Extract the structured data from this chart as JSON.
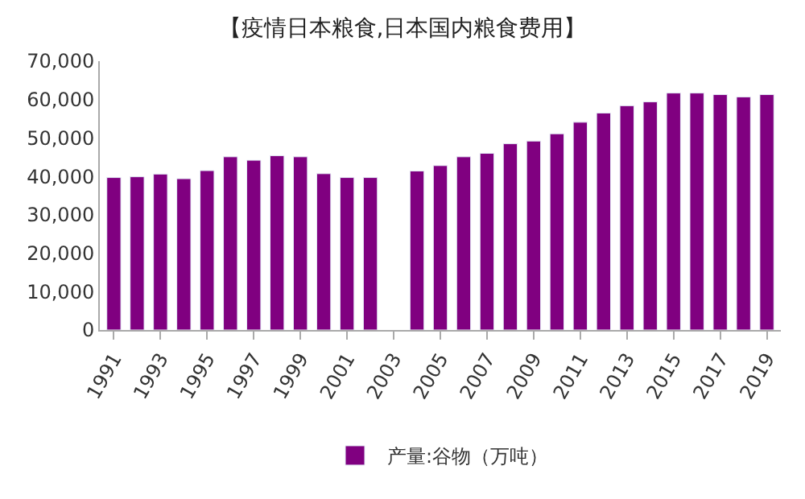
{
  "chart_data": {
    "type": "bar",
    "title": "【疫情日本粮食,日本国内粮食费用】",
    "categories": [
      "1991",
      null,
      "1993",
      null,
      "1995",
      null,
      "1997",
      null,
      "1999",
      null,
      "2001",
      null,
      "2003",
      null,
      "2005",
      null,
      "2007",
      null,
      "2009",
      null,
      "2011",
      null,
      "2013",
      null,
      "2015",
      null,
      "2017",
      null,
      "2019"
    ],
    "series": [
      {
        "name": "产量:谷物（万吨）",
        "color": "#800080",
        "values": [
          39700,
          39900,
          40600,
          39400,
          41500,
          45100,
          44200,
          45400,
          45100,
          40700,
          39700,
          39700,
          null,
          41400,
          42800,
          45100,
          46000,
          48500,
          49200,
          51100,
          54100,
          56500,
          58400,
          59400,
          61700,
          61700,
          61300,
          60700,
          61300
        ]
      }
    ],
    "ylim": [
      0,
      70000
    ],
    "yticks": [
      {
        "value": 0,
        "label": "0"
      },
      {
        "value": 10000,
        "label": "10,000"
      },
      {
        "value": 20000,
        "label": "20,000"
      },
      {
        "value": 30000,
        "label": "30,000"
      },
      {
        "value": 40000,
        "label": "40,000"
      },
      {
        "value": 50000,
        "label": "50,000"
      },
      {
        "value": 60000,
        "label": "60,000"
      },
      {
        "value": 70000,
        "label": "70,000"
      }
    ],
    "grid": false,
    "legend": "bottom"
  }
}
